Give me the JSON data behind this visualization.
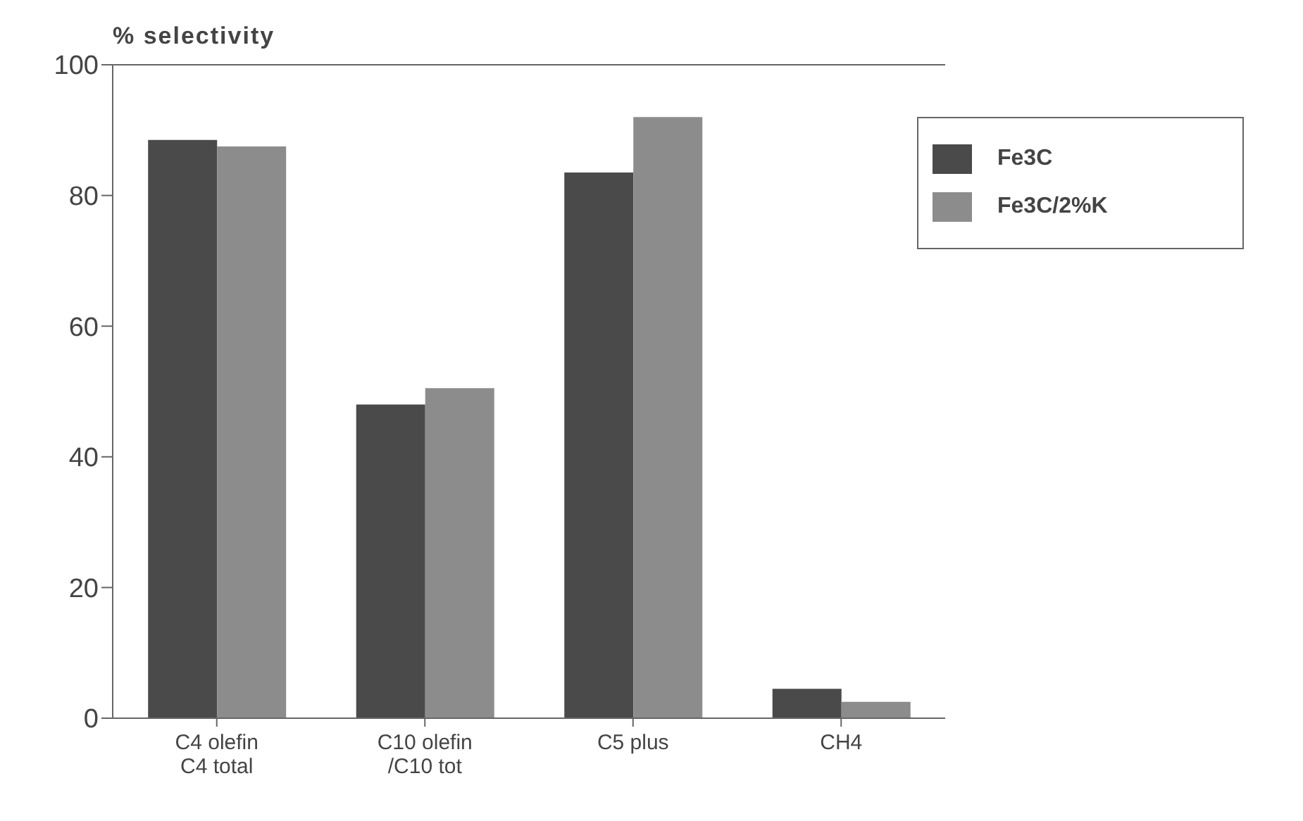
{
  "chart_data": {
    "type": "bar",
    "ylabel": "% selectivity",
    "categories": [
      "C4 olefin\nC4 total",
      "C10 olefin\n/C10 tot",
      "C5 plus",
      "CH4"
    ],
    "series": [
      {
        "name": "Fe3C",
        "color": "#4a4a4a",
        "values": [
          88.5,
          48,
          83.5,
          4.5
        ]
      },
      {
        "name": "Fe3C/2%K",
        "color": "#8c8c8c",
        "values": [
          87.5,
          50.5,
          92,
          2.5
        ]
      }
    ],
    "ylim": [
      0,
      100
    ],
    "yticks": [
      0,
      20,
      40,
      60,
      80,
      100
    ],
    "grid": false,
    "legend": "top right"
  }
}
